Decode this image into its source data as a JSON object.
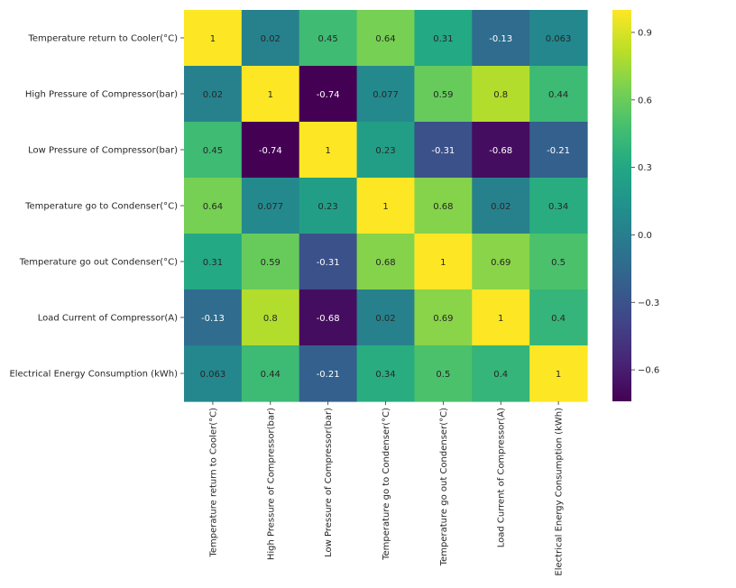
{
  "chart_data": {
    "type": "heatmap",
    "colormap": "viridis",
    "annotations": true,
    "rows": [
      "Temperature return to Cooler(°C)",
      "High Pressure of Compressor(bar)",
      "Low Pressure of Compressor(bar)",
      "Temperature go to Condenser(°C)",
      "Temperature go out Condenser(°C)",
      "Load Current of Compressor(A)",
      "Electrical Energy Consumption (kWh)"
    ],
    "columns": [
      "Temperature return to Cooler(°C)",
      "High Pressure of Compressor(bar)",
      "Low Pressure of Compressor(bar)",
      "Temperature go to Condenser(°C)",
      "Temperature go out Condenser(°C)",
      "Load Current of Compressor(A)",
      "Electrical Energy Consumption (kWh)"
    ],
    "values": [
      [
        1,
        0.02,
        0.45,
        0.64,
        0.31,
        -0.13,
        0.063
      ],
      [
        0.02,
        1,
        -0.74,
        0.077,
        0.59,
        0.8,
        0.44
      ],
      [
        0.45,
        -0.74,
        1,
        0.23,
        -0.31,
        -0.68,
        -0.21
      ],
      [
        0.64,
        0.077,
        0.23,
        1,
        0.68,
        0.02,
        0.34
      ],
      [
        0.31,
        0.59,
        -0.31,
        0.68,
        1,
        0.69,
        0.5
      ],
      [
        -0.13,
        0.8,
        -0.68,
        0.02,
        0.69,
        1,
        0.4
      ],
      [
        0.063,
        0.44,
        -0.21,
        0.34,
        0.5,
        0.4,
        1
      ]
    ],
    "value_labels": [
      [
        "1",
        "0.02",
        "0.45",
        "0.64",
        "0.31",
        "-0.13",
        "0.063"
      ],
      [
        "0.02",
        "1",
        "-0.74",
        "0.077",
        "0.59",
        "0.8",
        "0.44"
      ],
      [
        "0.45",
        "-0.74",
        "1",
        "0.23",
        "-0.31",
        "-0.68",
        "-0.21"
      ],
      [
        "0.64",
        "0.077",
        "0.23",
        "1",
        "0.68",
        "0.02",
        "0.34"
      ],
      [
        "0.31",
        "0.59",
        "-0.31",
        "0.68",
        "1",
        "0.69",
        "0.5"
      ],
      [
        "-0.13",
        "0.8",
        "-0.68",
        "0.02",
        "0.69",
        "1",
        "0.4"
      ],
      [
        "0.063",
        "0.44",
        "-0.21",
        "0.34",
        "0.5",
        "0.4",
        "1"
      ]
    ],
    "colorbar": {
      "range": [
        -0.74,
        1
      ],
      "ticks": [
        0.9,
        0.6,
        0.3,
        0.0,
        -0.3,
        -0.6
      ],
      "tick_labels": [
        "0.9",
        "0.6",
        "0.3",
        "0.0",
        "−0.3",
        "−0.6"
      ]
    }
  }
}
